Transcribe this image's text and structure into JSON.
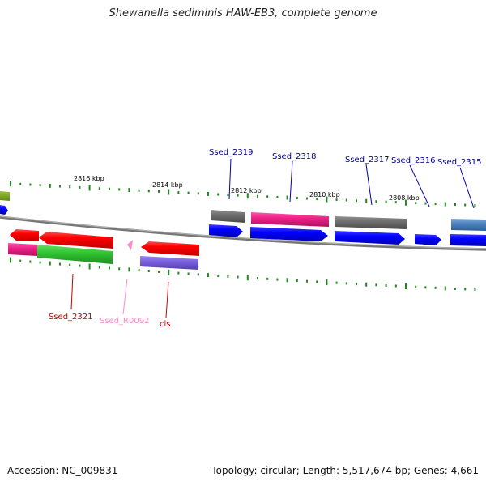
{
  "title": "Shewanella sediminis HAW-EB3, complete genome",
  "footer": {
    "accession": "Accession: NC_009831",
    "summary": "Topology: circular; Length: 5,517,674 bp; Genes: 4,661"
  },
  "colors": {
    "forward_cds": "#0000ff",
    "reverse_cds": "#ff0000",
    "rna": "#ff88cc",
    "backbone": "#888888",
    "ticks": "#228822",
    "forward_label": "#00008b",
    "reverse_label": "#cc0000"
  },
  "scale_labels": [
    "2816 kbp",
    "2814 kbp",
    "2812 kbp",
    "2810 kbp",
    "2808 kbp"
  ],
  "gene_labels": {
    "Ssed_2319": "Ssed_2319",
    "Ssed_2318": "Ssed_2318",
    "Ssed_2317": "Ssed_2317",
    "Ssed_2316": "Ssed_2316",
    "Ssed_2315": "Ssed_2315",
    "Ssed_2321": "Ssed_2321",
    "Ssed_R0092": "Ssed_R0092",
    "cls": "cls"
  }
}
